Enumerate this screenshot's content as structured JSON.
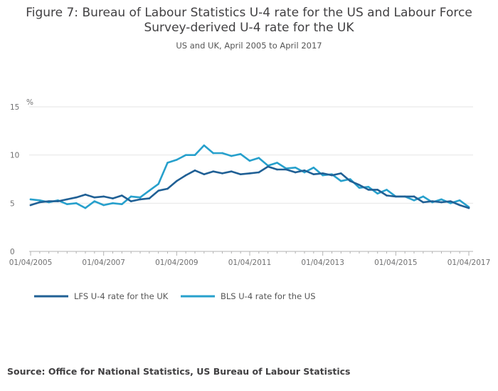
{
  "figure": {
    "title_line1": "Figure 7: Bureau of Labour Statistics U-4 rate for the US and Labour Force",
    "title_line2": "Survey-derived U-4 rate for the UK",
    "subtitle": "US and UK, April 2005 to April 2017",
    "source": "Source: Office for National Statistics, US Bureau of Labour Statistics"
  },
  "colors": {
    "uk": "#206095",
    "us": "#27a0cc",
    "grid": "#e6e6e6",
    "axis": "#b3b3b3"
  },
  "chart_data": {
    "type": "line",
    "title": "Figure 7: Bureau of Labour Statistics U-4 rate for the US and Labour Force Survey-derived U-4 rate for the UK",
    "subtitle": "US and UK, April 2005 to April 2017",
    "ylabel": "%",
    "xlabel": "",
    "ylim": [
      0,
      15
    ],
    "yticks": [
      "0",
      "5",
      "10",
      "15"
    ],
    "xlim": [
      0,
      48
    ],
    "xticks": [
      {
        "i": 0,
        "label": "01/04/2005"
      },
      {
        "i": 8,
        "label": "01/04/2007"
      },
      {
        "i": 16,
        "label": "01/04/2009"
      },
      {
        "i": 24,
        "label": "01/04/2011"
      },
      {
        "i": 32,
        "label": "01/04/2013"
      },
      {
        "i": 40,
        "label": "01/04/2015"
      },
      {
        "i": 48,
        "label": "01/04/2017"
      }
    ],
    "x_frequency": "quarterly",
    "grid": true,
    "legend": "bottom",
    "series": [
      {
        "name": "LFS U-4 rate for the UK",
        "color": "#206095",
        "values": [
          4.8,
          5.1,
          5.2,
          5.2,
          5.4,
          5.6,
          5.9,
          5.6,
          5.7,
          5.5,
          5.8,
          5.2,
          5.4,
          5.5,
          6.3,
          6.5,
          7.3,
          7.9,
          8.4,
          8.0,
          8.3,
          8.1,
          8.3,
          8.0,
          8.1,
          8.2,
          8.8,
          8.5,
          8.5,
          8.2,
          8.4,
          8.0,
          8.1,
          7.9,
          8.1,
          7.3,
          6.9,
          6.4,
          6.4,
          5.8,
          5.7,
          5.7,
          5.7,
          5.1,
          5.2,
          5.1,
          5.2,
          4.8,
          4.5
        ]
      },
      {
        "name": "BLS U-4 rate for the US",
        "color": "#27a0cc",
        "values": [
          5.4,
          5.3,
          5.1,
          5.3,
          4.9,
          5.0,
          4.5,
          5.2,
          4.8,
          5.0,
          4.9,
          5.7,
          5.6,
          6.3,
          7.0,
          9.2,
          9.5,
          10.0,
          10.0,
          11.0,
          10.2,
          10.2,
          9.9,
          10.1,
          9.4,
          9.7,
          8.9,
          9.2,
          8.6,
          8.7,
          8.2,
          8.7,
          7.9,
          8.0,
          7.3,
          7.5,
          6.6,
          6.7,
          6.0,
          6.4,
          5.7,
          5.7,
          5.3,
          5.7,
          5.1,
          5.4,
          5.0,
          5.3,
          4.6
        ]
      }
    ]
  }
}
